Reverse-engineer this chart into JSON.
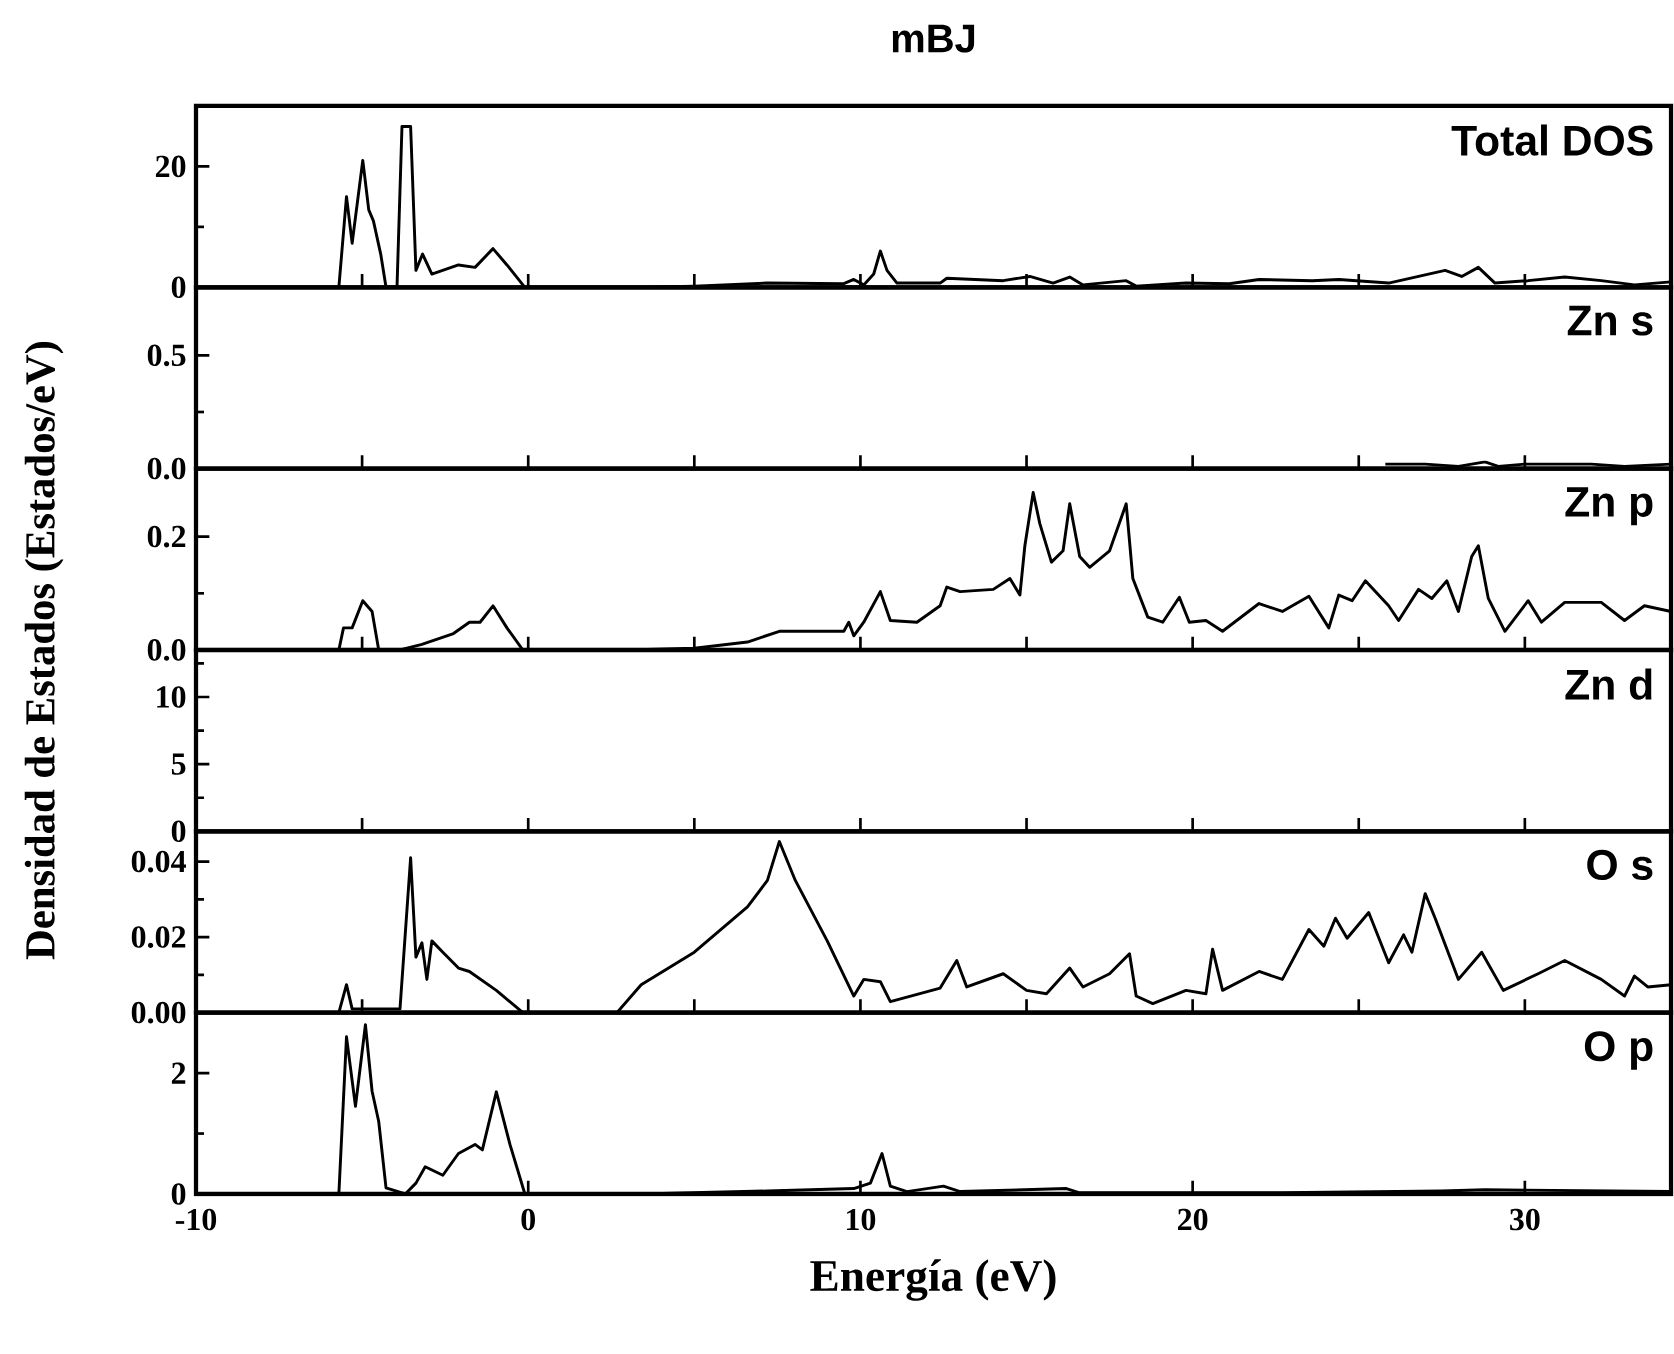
{
  "chart_data": [
    {
      "type": "line",
      "title": "mBJ",
      "annotations": [
        "Total DOS"
      ],
      "xlim": [
        -10,
        34.4
      ],
      "ylim": [
        0,
        30
      ],
      "tick_labels": "y",
      "xticks": [
        {
          "value": -10,
          "label": null
        },
        {
          "value": -5,
          "label": null
        },
        {
          "value": 0,
          "label": null
        },
        {
          "value": 5,
          "label": null
        },
        {
          "value": 10,
          "label": null
        },
        {
          "value": 15,
          "label": null
        },
        {
          "value": 20,
          "label": null
        },
        {
          "value": 25,
          "label": null
        },
        {
          "value": 30,
          "label": null
        }
      ],
      "yticks": [
        0,
        {
          "value": 10,
          "label": null
        },
        20
      ],
      "series": [
        {
          "color": "#000000",
          "x": [
            -10,
            -5.7,
            -5.47,
            -5.3,
            -4.98,
            -4.8,
            -4.66,
            -4.44,
            -4.28,
            -3.95,
            -3.8,
            -3.54,
            -3.38,
            -3.18,
            -2.9,
            -2.1,
            -1.6,
            -1.06,
            -0.64,
            -0.1,
            3.5,
            5,
            7.2,
            9.5,
            9.8,
            10.1,
            10.4,
            10.6,
            10.8,
            11.1,
            12.4,
            12.6,
            14.3,
            15.1,
            15.8,
            16.3,
            16.7,
            18,
            18.3,
            19.8,
            21.1,
            22,
            23.6,
            24.4,
            25.9,
            26.8,
            27.6,
            28.1,
            28.6,
            29.1,
            30.1,
            31.2,
            32.3,
            33.3,
            34.4
          ],
          "values": [
            0,
            0,
            15,
            7.3,
            21,
            12.8,
            11,
            5.5,
            0,
            0,
            26.6,
            26.6,
            2.8,
            5.5,
            2.2,
            3.7,
            3.3,
            6.4,
            3.7,
            0,
            0,
            0.2,
            0.7,
            0.6,
            1.3,
            0.4,
            2.2,
            6,
            2.8,
            0.7,
            0.7,
            1.5,
            1.1,
            1.8,
            0.7,
            1.7,
            0.4,
            1.1,
            0.2,
            0.7,
            0.6,
            1.3,
            1.1,
            1.3,
            0.7,
            1.8,
            2.8,
            1.8,
            3.3,
            0.7,
            1.1,
            1.7,
            1.1,
            0.4,
            0.9
          ]
        }
      ]
    },
    {
      "type": "line",
      "annotations": [
        "Zn s"
      ],
      "xlim": [
        -10,
        34.4
      ],
      "ylim": [
        0,
        0.8
      ],
      "tick_labels": "y",
      "xticks": [
        {
          "value": -10,
          "label": null
        },
        {
          "value": -5,
          "label": null
        },
        {
          "value": 0,
          "label": null
        },
        {
          "value": 5,
          "label": null
        },
        {
          "value": 10,
          "label": null
        },
        {
          "value": 15,
          "label": null
        },
        {
          "value": 20,
          "label": null
        },
        {
          "value": 25,
          "label": null
        },
        {
          "value": 30,
          "label": null
        }
      ],
      "yticks": [
        {
          "value": 0,
          "label": "0.0"
        },
        {
          "value": 0.25,
          "label": null
        },
        0.5
      ],
      "series": [
        {
          "color": "#000000",
          "x": [
            25.8,
            27,
            28,
            28.8,
            29.2,
            30,
            31,
            32,
            33,
            34.4
          ],
          "values": [
            0.02,
            0.02,
            0.01,
            0.03,
            0.01,
            0.02,
            0.02,
            0.02,
            0.01,
            0.02
          ]
        }
      ]
    },
    {
      "type": "line",
      "annotations": [
        "Zn p"
      ],
      "xlim": [
        -10,
        34.4
      ],
      "ylim": [
        0,
        0.32
      ],
      "tick_labels": "y",
      "xticks": [
        {
          "value": -10,
          "label": null
        },
        {
          "value": -5,
          "label": null
        },
        {
          "value": 0,
          "label": null
        },
        {
          "value": 5,
          "label": null
        },
        {
          "value": 10,
          "label": null
        },
        {
          "value": 15,
          "label": null
        },
        {
          "value": 20,
          "label": null
        },
        {
          "value": 25,
          "label": null
        },
        {
          "value": 30,
          "label": null
        }
      ],
      "yticks": [
        {
          "value": 0,
          "label": "0.0"
        },
        {
          "value": 0.1,
          "label": null
        },
        0.2
      ],
      "ylabel": "Densidad de Estados (Estados/eV)",
      "series": [
        {
          "color": "#000000",
          "x": [
            -10,
            -5.7,
            -5.56,
            -5.3,
            -4.98,
            -4.7,
            -4.5,
            -3.86,
            -3.2,
            -2.25,
            -1.77,
            -1.45,
            -1.06,
            -0.64,
            -0.16,
            3,
            5,
            6.6,
            7.56,
            9.5,
            9.65,
            9.8,
            10.1,
            10.6,
            10.9,
            11.7,
            12.4,
            12.6,
            13,
            14,
            14.5,
            14.8,
            14.95,
            15.2,
            15.4,
            15.75,
            16.1,
            16.3,
            16.6,
            16.9,
            17.5,
            18,
            18.2,
            18.65,
            19.1,
            19.6,
            19.9,
            20.4,
            20.9,
            22,
            22.7,
            23.5,
            24.1,
            24.4,
            24.8,
            25.2,
            25.9,
            26.2,
            26.8,
            27.2,
            27.65,
            28,
            28.4,
            28.6,
            28.9,
            29.4,
            30.1,
            30.5,
            31.2,
            32.3,
            33,
            33.6,
            34.4
          ],
          "values": [
            0,
            0,
            0.039,
            0.039,
            0.087,
            0.068,
            0,
            0,
            0.01,
            0.029,
            0.049,
            0.049,
            0.078,
            0.039,
            0,
            0,
            0.003,
            0.014,
            0.033,
            0.033,
            0.049,
            0.025,
            0.049,
            0.103,
            0.052,
            0.049,
            0.078,
            0.111,
            0.103,
            0.107,
            0.126,
            0.097,
            0.184,
            0.278,
            0.223,
            0.155,
            0.175,
            0.258,
            0.165,
            0.146,
            0.175,
            0.258,
            0.126,
            0.058,
            0.049,
            0.093,
            0.049,
            0.052,
            0.033,
            0.082,
            0.068,
            0.095,
            0.039,
            0.097,
            0.087,
            0.122,
            0.078,
            0.052,
            0.107,
            0.091,
            0.122,
            0.068,
            0.165,
            0.184,
            0.091,
            0.033,
            0.087,
            0.049,
            0.084,
            0.084,
            0.052,
            0.078,
            0.068
          ]
        }
      ]
    },
    {
      "type": "line",
      "annotations": [
        "Zn d"
      ],
      "xlim": [
        -10,
        34.4
      ],
      "ylim": [
        0,
        13.5
      ],
      "tick_labels": "y",
      "xticks": [
        {
          "value": -10,
          "label": null
        },
        {
          "value": -5,
          "label": null
        },
        {
          "value": 0,
          "label": null
        },
        {
          "value": 5,
          "label": null
        },
        {
          "value": 10,
          "label": null
        },
        {
          "value": 15,
          "label": null
        },
        {
          "value": 20,
          "label": null
        },
        {
          "value": 25,
          "label": null
        },
        {
          "value": 30,
          "label": null
        }
      ],
      "yticks": [
        0,
        {
          "value": 2.5,
          "label": null
        },
        5,
        {
          "value": 7.5,
          "label": null
        },
        10,
        {
          "value": 12.5,
          "label": null
        }
      ]
    },
    {
      "type": "line",
      "annotations": [
        "O s"
      ],
      "xlim": [
        -10,
        34.4
      ],
      "ylim": [
        0,
        0.048
      ],
      "tick_labels": "y",
      "xticks": [
        {
          "value": -10,
          "label": null
        },
        {
          "value": -5,
          "label": null
        },
        {
          "value": 0,
          "label": null
        },
        {
          "value": 5,
          "label": null
        },
        {
          "value": 10,
          "label": null
        },
        {
          "value": 15,
          "label": null
        },
        {
          "value": 20,
          "label": null
        },
        {
          "value": 25,
          "label": null
        },
        {
          "value": 30,
          "label": null
        }
      ],
      "yticks": [
        {
          "value": 0,
          "label": "0.00"
        },
        {
          "value": 0.01,
          "label": null
        },
        0.02,
        {
          "value": 0.03,
          "label": null
        },
        0.04
      ],
      "series": [
        {
          "color": "#000000",
          "x": [
            -10,
            -5.7,
            -5.47,
            -5.3,
            -3.86,
            -3.54,
            -3.38,
            -3.2,
            -3.05,
            -2.9,
            -2.57,
            -2.1,
            -1.77,
            -0.96,
            -0.16,
            2.67,
            3.4,
            5,
            6.6,
            7.2,
            7.56,
            8.04,
            9,
            9.8,
            10.1,
            10.6,
            10.9,
            12.4,
            12.9,
            13.2,
            14.3,
            15,
            15.6,
            16.3,
            16.7,
            17.5,
            18.1,
            18.3,
            18.8,
            19.8,
            20.4,
            20.6,
            20.9,
            22,
            22.7,
            23.5,
            23.95,
            24.3,
            24.65,
            25.3,
            25.9,
            26.35,
            26.6,
            27,
            27.3,
            28,
            28.7,
            29.35,
            30.4,
            31.2,
            32.3,
            33,
            33.3,
            33.7,
            34.4
          ],
          "values": [
            0,
            0,
            0.0074,
            0.001,
            0.001,
            0.041,
            0.0147,
            0.0185,
            0.0088,
            0.019,
            0.016,
            0.0118,
            0.0109,
            0.0059,
            0,
            0,
            0.0074,
            0.016,
            0.028,
            0.035,
            0.0453,
            0.035,
            0.019,
            0.0044,
            0.0088,
            0.0082,
            0.0029,
            0.0065,
            0.0138,
            0.0068,
            0.0103,
            0.0059,
            0.005,
            0.0118,
            0.0068,
            0.0103,
            0.0156,
            0.0044,
            0.0024,
            0.0059,
            0.005,
            0.0168,
            0.0059,
            0.0109,
            0.0088,
            0.022,
            0.0176,
            0.025,
            0.0197,
            0.0265,
            0.0132,
            0.0206,
            0.016,
            0.0315,
            0.025,
            0.0088,
            0.016,
            0.0059,
            0.0103,
            0.0138,
            0.0088,
            0.0044,
            0.0097,
            0.0068,
            0.0074
          ]
        }
      ]
    },
    {
      "type": "line",
      "annotations": [
        "O p"
      ],
      "xlabel": "Energía (eV)",
      "xlim": [
        -10,
        34.4
      ],
      "ylim": [
        0,
        3
      ],
      "xticks": [
        -10,
        0,
        10,
        20,
        30
      ],
      "yticks": [
        0,
        {
          "value": 1,
          "label": null
        },
        2
      ],
      "series": [
        {
          "color": "#000000",
          "x": [
            -10,
            -5.7,
            -5.47,
            -5.2,
            -4.9,
            -4.7,
            -4.5,
            -4.28,
            -3.7,
            -3.38,
            -3.1,
            -2.57,
            -2.1,
            -1.6,
            -1.38,
            -0.96,
            -0.55,
            -0.1,
            3.4,
            7.2,
            9.8,
            10.3,
            10.65,
            10.9,
            11.4,
            12.5,
            13,
            16.2,
            16.6,
            22.7,
            27.5,
            28.8,
            34.4
          ],
          "values": [
            0,
            0,
            2.6,
            1.45,
            2.8,
            1.7,
            1.2,
            0.1,
            0,
            0.18,
            0.45,
            0.31,
            0.67,
            0.82,
            0.73,
            1.69,
            0.82,
            0,
            0,
            0.05,
            0.09,
            0.18,
            0.67,
            0.13,
            0.04,
            0.13,
            0.04,
            0.09,
            0.02,
            0.02,
            0.05,
            0.07,
            0.04
          ]
        }
      ]
    }
  ]
}
